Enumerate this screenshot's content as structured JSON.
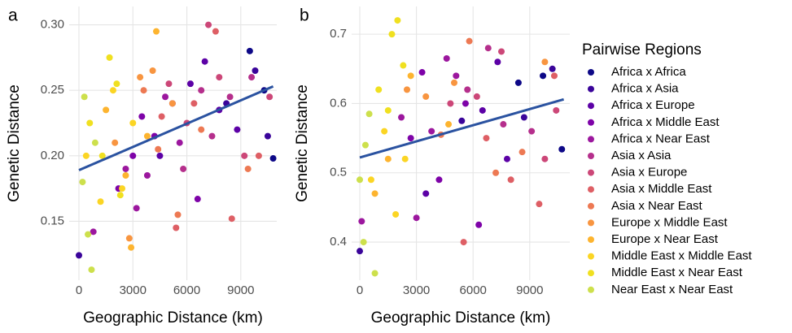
{
  "chart_data": [
    {
      "type": "scatter",
      "panel_label": "a",
      "x_label": "Geographic Distance (km)",
      "y_label": "Genetic Distance",
      "xlim": [
        -543,
        11000
      ],
      "ylim": [
        0.105,
        0.314
      ],
      "xticks": [
        0,
        3000,
        6000,
        9000
      ],
      "yticks": [
        0.15,
        {
          "value": 0.2,
          "label": "0.20"
        },
        0.25,
        {
          "value": 0.3,
          "label": "0.30"
        }
      ],
      "grid": true,
      "legend": "right",
      "legend_title": "Pairwise Regions",
      "trend": {
        "x": [
          0,
          10800
        ],
        "y": [
          0.189,
          0.253
        ],
        "color": "#2a52a0"
      },
      "series": [
        {
          "name": "Africa x Africa",
          "color": "#0d0887",
          "x": [
            10300,
            10800,
            9500
          ],
          "values": [
            0.25,
            0.198,
            0.28
          ]
        },
        {
          "name": "Africa x Asia",
          "color": "#3a049a",
          "x": [
            8200,
            9800,
            10500,
            0
          ],
          "values": [
            0.24,
            0.265,
            0.215,
            0.124
          ]
        },
        {
          "name": "Africa x Europe",
          "color": "#5c01a6",
          "x": [
            7000,
            7800,
            8800,
            4500,
            6200
          ],
          "values": [
            0.272,
            0.235,
            0.22,
            0.2,
            0.255
          ]
        },
        {
          "name": "Africa x Middle East",
          "color": "#7e03a8",
          "x": [
            3500,
            4200,
            5200,
            3000,
            6600,
            2200
          ],
          "values": [
            0.23,
            0.215,
            0.24,
            0.2,
            0.167,
            0.175
          ]
        },
        {
          "name": "Africa x Near East",
          "color": "#9c179e",
          "x": [
            2600,
            3200,
            4800,
            5600,
            800,
            3800
          ],
          "values": [
            0.19,
            0.16,
            0.245,
            0.21,
            0.142,
            0.185
          ]
        },
        {
          "name": "Asia x Asia",
          "color": "#b52f8c",
          "x": [
            6800,
            7400,
            5800,
            8400,
            9600
          ],
          "values": [
            0.25,
            0.215,
            0.19,
            0.245,
            0.26
          ]
        },
        {
          "name": "Asia x Europe",
          "color": "#cc4778",
          "x": [
            5000,
            6000,
            7200,
            7800,
            9200,
            10600
          ],
          "values": [
            0.255,
            0.225,
            0.3,
            0.26,
            0.2,
            0.245
          ]
        },
        {
          "name": "Asia x Middle East",
          "color": "#de5f65",
          "x": [
            4600,
            5400,
            6400,
            7600,
            8500,
            10000
          ],
          "values": [
            0.23,
            0.145,
            0.24,
            0.295,
            0.152,
            0.2
          ]
        },
        {
          "name": "Asia x Near East",
          "color": "#ed7953",
          "x": [
            3600,
            4400,
            5500,
            6800,
            9400
          ],
          "values": [
            0.25,
            0.205,
            0.155,
            0.22,
            0.19
          ]
        },
        {
          "name": "Europe x Middle East",
          "color": "#f89540",
          "x": [
            2000,
            2800,
            3400,
            4100,
            5200
          ],
          "values": [
            0.21,
            0.137,
            0.26,
            0.265,
            0.24
          ]
        },
        {
          "name": "Europe x Near East",
          "color": "#fdb42f",
          "x": [
            1500,
            2600,
            2900,
            4300,
            3800
          ],
          "values": [
            0.235,
            0.185,
            0.13,
            0.295,
            0.215
          ]
        },
        {
          "name": "Middle East x Middle East",
          "color": "#fbd524",
          "x": [
            400,
            1200,
            1900,
            2400,
            3000
          ],
          "values": [
            0.2,
            0.165,
            0.25,
            0.175,
            0.225
          ]
        },
        {
          "name": "Middle East x Near East",
          "color": "#f0e020",
          "x": [
            600,
            1300,
            1700,
            2100,
            2300
          ],
          "values": [
            0.225,
            0.2,
            0.275,
            0.255,
            0.17
          ]
        },
        {
          "name": "Near East x Near East",
          "color": "#cde04c",
          "x": [
            300,
            700,
            500,
            900,
            200
          ],
          "values": [
            0.245,
            0.113,
            0.14,
            0.21,
            0.18
          ]
        }
      ]
    },
    {
      "type": "scatter",
      "panel_label": "b",
      "x_label": "Geographic Distance (km)",
      "y_label": "Genetic Distance",
      "xlim": [
        -431,
        11120
      ],
      "ylim": [
        0.345,
        0.74
      ],
      "xticks": [
        0,
        3000,
        6000,
        9000
      ],
      "yticks": [
        0.4,
        0.5,
        0.6,
        0.7
      ],
      "grid": true,
      "trend": {
        "x": [
          0,
          10800
        ],
        "y": [
          0.522,
          0.606
        ],
        "color": "#2a52a0"
      },
      "series": [
        {
          "name": "Africa x Africa",
          "color": "#0d0887",
          "x": [
            10700,
            9700,
            8400
          ],
          "values": [
            0.534,
            0.64,
            0.63
          ]
        },
        {
          "name": "Africa x Asia",
          "color": "#3a049a",
          "x": [
            10200,
            8700,
            0,
            5400
          ],
          "values": [
            0.65,
            0.58,
            0.387,
            0.575
          ]
        },
        {
          "name": "Africa x Europe",
          "color": "#5c01a6",
          "x": [
            7300,
            6500,
            7800,
            3500
          ],
          "values": [
            0.66,
            0.59,
            0.52,
            0.47
          ]
        },
        {
          "name": "Africa x Middle East",
          "color": "#7e03a8",
          "x": [
            3300,
            4200,
            2700,
            5600,
            6300
          ],
          "values": [
            0.645,
            0.49,
            0.55,
            0.6,
            0.425
          ]
        },
        {
          "name": "Africa x Near East",
          "color": "#9c179e",
          "x": [
            2200,
            3000,
            3800,
            4600,
            100,
            5100
          ],
          "values": [
            0.58,
            0.435,
            0.56,
            0.665,
            0.43,
            0.64
          ]
        },
        {
          "name": "Asia x Asia",
          "color": "#b52f8c",
          "x": [
            5700,
            6800,
            7600,
            9100
          ],
          "values": [
            0.62,
            0.68,
            0.57,
            0.56
          ]
        },
        {
          "name": "Asia x Europe",
          "color": "#cc4778",
          "x": [
            4800,
            6200,
            7500,
            9800,
            10400
          ],
          "values": [
            0.6,
            0.61,
            0.675,
            0.52,
            0.59
          ]
        },
        {
          "name": "Asia x Middle East",
          "color": "#de5f65",
          "x": [
            5500,
            6700,
            8000,
            9500,
            10300
          ],
          "values": [
            0.4,
            0.55,
            0.49,
            0.455,
            0.64
          ]
        },
        {
          "name": "Asia x Near East",
          "color": "#ed7953",
          "x": [
            4300,
            5800,
            7200,
            8600
          ],
          "values": [
            0.555,
            0.69,
            0.5,
            0.53
          ]
        },
        {
          "name": "Europe x Middle East",
          "color": "#f89540",
          "x": [
            2500,
            3500,
            5000,
            9800
          ],
          "values": [
            0.62,
            0.61,
            0.63,
            0.66
          ]
        },
        {
          "name": "Europe x Near East",
          "color": "#fdb42f",
          "x": [
            800,
            1500,
            2700,
            4700
          ],
          "values": [
            0.47,
            0.52,
            0.64,
            0.57
          ]
        },
        {
          "name": "Middle East x Middle East",
          "color": "#fbd524",
          "x": [
            600,
            1300,
            1900,
            2400
          ],
          "values": [
            0.49,
            0.56,
            0.44,
            0.52
          ]
        },
        {
          "name": "Middle East x Near East",
          "color": "#f0e020",
          "x": [
            1000,
            1700,
            2000,
            2300,
            1500
          ],
          "values": [
            0.62,
            0.7,
            0.72,
            0.655,
            0.59
          ]
        },
        {
          "name": "Near East x Near East",
          "color": "#cde04c",
          "x": [
            0,
            300,
            500,
            800,
            200
          ],
          "values": [
            0.49,
            0.54,
            0.585,
            0.355,
            0.4
          ]
        }
      ]
    }
  ]
}
